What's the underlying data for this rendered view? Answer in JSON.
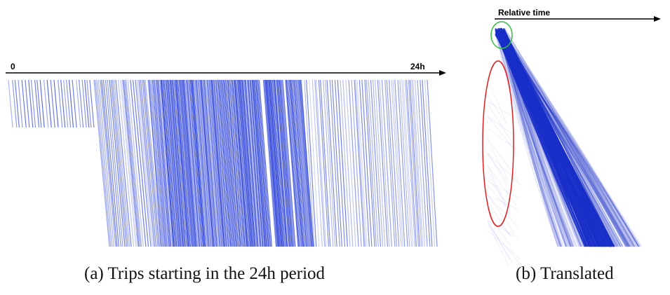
{
  "chart_data": [
    {
      "type": "timeline",
      "panel": "a",
      "axis_start_label": "0",
      "axis_end_label": "24h",
      "caption": "(a) Trips starting in the 24h period",
      "line_color": "#2f45d8"
    },
    {
      "type": "timeline",
      "panel": "b",
      "axis_label": "Relative time",
      "caption": "(b) Translated",
      "line_color": "#1a2fc8",
      "annotations": [
        {
          "shape": "ellipse",
          "color": "#2fbf3f"
        },
        {
          "shape": "ellipse",
          "color": "#e02020"
        }
      ]
    }
  ]
}
